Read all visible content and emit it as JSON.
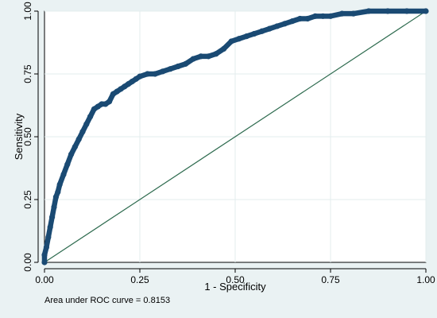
{
  "chart_data": {
    "type": "line",
    "title": "",
    "xlabel": "1 - Specificity",
    "ylabel": "Sensitivity",
    "xlim": [
      0,
      1
    ],
    "ylim": [
      0,
      1
    ],
    "xticks": [
      "0.00",
      "0.25",
      "0.50",
      "0.75",
      "1.00"
    ],
    "yticks": [
      "0.00",
      "0.25",
      "0.50",
      "0.75",
      "1.00"
    ],
    "grid": true,
    "legend": "none",
    "note": "Area under ROC curve = 0.8153",
    "colors": {
      "roc": "#1a4a73",
      "reference": "#2e6b4f",
      "grid": "#e3ecee",
      "plot_bg": "#ffffff",
      "page_bg": "#eaf2f3"
    },
    "series": [
      {
        "x": [
          0,
          0,
          0.005,
          0.01,
          0.015,
          0.02,
          0.025,
          0.03,
          0.035,
          0.04,
          0.05,
          0.06,
          0.07,
          0.08,
          0.09,
          0.1,
          0.11,
          0.12,
          0.13,
          0.14,
          0.15,
          0.16,
          0.17,
          0.18,
          0.19,
          0.2,
          0.21,
          0.22,
          0.23,
          0.24,
          0.25,
          0.27,
          0.29,
          0.31,
          0.33,
          0.35,
          0.37,
          0.39,
          0.41,
          0.43,
          0.45,
          0.47,
          0.49,
          0.51,
          0.53,
          0.55,
          0.57,
          0.59,
          0.61,
          0.63,
          0.65,
          0.67,
          0.69,
          0.71,
          0.73,
          0.75,
          0.78,
          0.81,
          0.85,
          0.9,
          0.95,
          1
        ],
        "y": [
          0,
          0.03,
          0.06,
          0.1,
          0.14,
          0.18,
          0.22,
          0.26,
          0.28,
          0.31,
          0.35,
          0.39,
          0.43,
          0.46,
          0.49,
          0.52,
          0.55,
          0.58,
          0.61,
          0.62,
          0.63,
          0.63,
          0.64,
          0.67,
          0.68,
          0.69,
          0.7,
          0.71,
          0.72,
          0.73,
          0.74,
          0.75,
          0.75,
          0.76,
          0.77,
          0.78,
          0.79,
          0.81,
          0.82,
          0.82,
          0.83,
          0.85,
          0.88,
          0.89,
          0.9,
          0.91,
          0.92,
          0.93,
          0.94,
          0.95,
          0.96,
          0.97,
          0.97,
          0.98,
          0.98,
          0.98,
          0.99,
          0.99,
          1,
          1,
          1,
          1
        ]
      },
      {
        "x": [
          0,
          1
        ],
        "y": [
          0,
          1
        ]
      }
    ]
  }
}
